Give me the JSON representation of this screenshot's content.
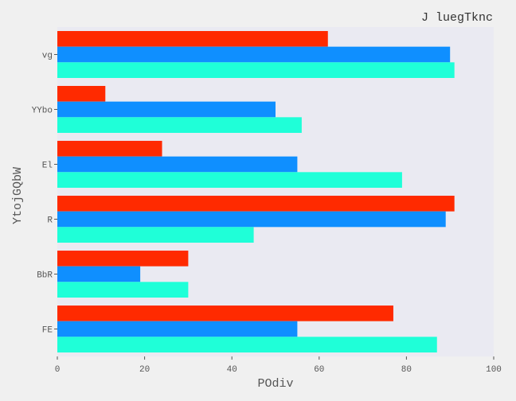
{
  "chart_data": {
    "type": "bar",
    "orientation": "horizontal",
    "title": "J luegTknc",
    "xlabel": "POdiv",
    "ylabel": "YtojGQbW",
    "categories": [
      "vg",
      "YYbo",
      "El",
      "R",
      "BbR",
      "FE"
    ],
    "series": [
      {
        "color": "#ff2a00",
        "values": [
          62,
          11,
          24,
          91,
          30,
          77
        ]
      },
      {
        "color": "#0f8fff",
        "values": [
          90,
          50,
          55,
          89,
          19,
          55
        ]
      },
      {
        "color": "#1fffd8",
        "values": [
          91,
          56,
          79,
          45,
          30,
          87
        ]
      }
    ],
    "xlim": [
      0,
      100
    ],
    "xticks": [
      0,
      20,
      40,
      60,
      80,
      100
    ],
    "grid": false,
    "legend": "none"
  },
  "colors": {
    "plot_background": "#eaeaf2",
    "page_background": "#f0f0f0"
  }
}
